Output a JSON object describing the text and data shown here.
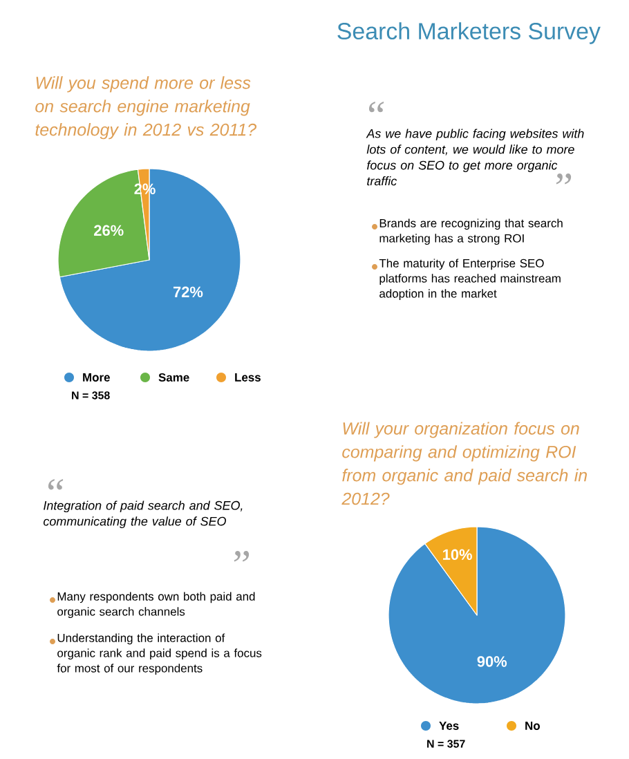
{
  "chart_data": [
    {
      "type": "other",
      "title": "Search Marketers Survey"
    },
    {
      "type": "pie",
      "title": "Will you spend more or less on search engine marketing technology in 2012 vs 2011?",
      "categories": [
        "More",
        "Same",
        "Less"
      ],
      "values": [
        72,
        26,
        2
      ],
      "colors": [
        "#3d8fcd",
        "#6ab547",
        "#f0a030"
      ],
      "value_labels": [
        "72%",
        "26%",
        "2%"
      ],
      "legend": "bottom",
      "annotations": [
        "N = 358"
      ]
    },
    {
      "type": "other",
      "annotations": [
        "“",
        "As we have public facing websites with lots of content, we would like to more focus on SEO to get more organic traffic",
        "”",
        "Brands are recognizing that search marketing has a strong ROI",
        "The maturity of Enterprise SEO platforms has reached mainstream adoption in the market"
      ]
    },
    {
      "type": "other",
      "annotations": [
        "“",
        "Integration of paid search and SEO, communicating the value of SEO",
        "”",
        "Many respondents own both paid and organic search channels",
        "Understanding the interaction of organic rank and paid spend is a focus for most of our respondents"
      ]
    },
    {
      "type": "pie",
      "title": "Will your organization focus on comparing and optimizing ROI from organic and paid search in 2012?",
      "categories": [
        "Yes",
        "No"
      ],
      "values": [
        90,
        10
      ],
      "colors": [
        "#3d8fcd",
        "#f2a91f"
      ],
      "value_labels": [
        "90%",
        "10%"
      ],
      "legend": "bottom",
      "annotations": [
        "N = 357"
      ]
    }
  ]
}
